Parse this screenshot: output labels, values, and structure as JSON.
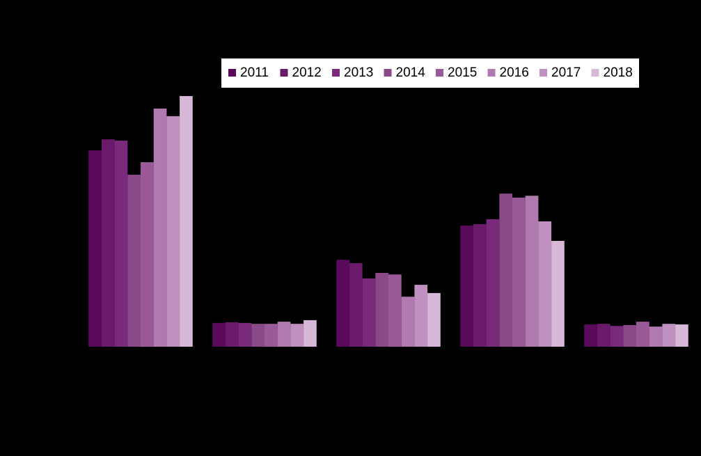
{
  "chart_data": {
    "type": "bar",
    "categories": [
      null,
      null,
      null,
      null,
      null
    ],
    "series": [
      {
        "name": "2011",
        "color": "#5a0a5a",
        "values": [
          64.4,
          7.8,
          28.5,
          39.7,
          7.3
        ]
      },
      {
        "name": "2012",
        "color": "#6a1a6a",
        "values": [
          68.0,
          8.0,
          27.4,
          40.2,
          7.5
        ]
      },
      {
        "name": "2013",
        "color": "#7a2a7a",
        "values": [
          67.6,
          7.8,
          22.4,
          41.8,
          6.8
        ]
      },
      {
        "name": "2014",
        "color": "#8a4a8a",
        "values": [
          56.4,
          7.5,
          24.2,
          50.2,
          7.1
        ]
      },
      {
        "name": "2015",
        "color": "#9a5a9a",
        "values": [
          60.5,
          7.5,
          23.7,
          48.9,
          8.2
        ]
      },
      {
        "name": "2016",
        "color": "#b07ab0",
        "values": [
          78.1,
          8.2,
          16.4,
          49.5,
          6.6
        ]
      },
      {
        "name": "2017",
        "color": "#c090c0",
        "values": [
          75.6,
          7.5,
          20.3,
          41.1,
          7.5
        ]
      },
      {
        "name": "2018",
        "color": "#d8b8d8",
        "values": [
          82.2,
          8.7,
          17.6,
          34.7,
          7.3
        ]
      }
    ],
    "ylim": [
      0,
      100
    ]
  }
}
